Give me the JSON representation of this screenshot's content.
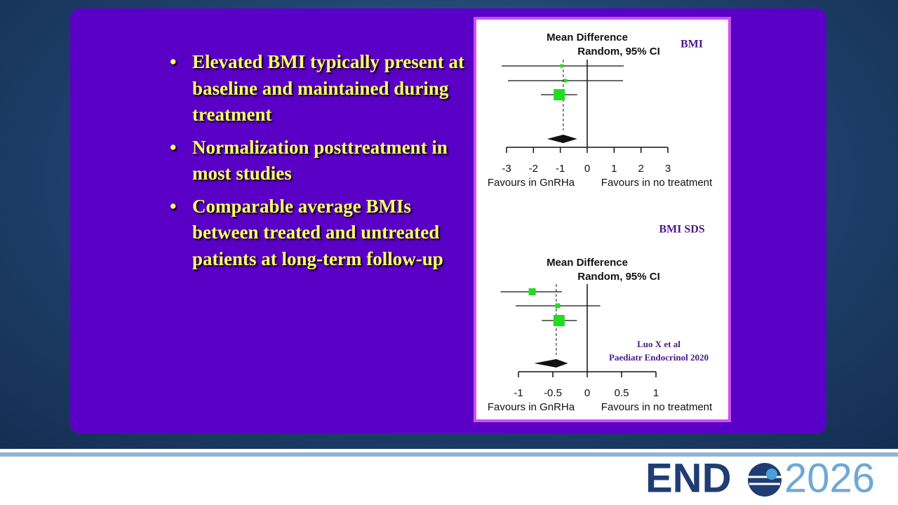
{
  "slide": {
    "bullets": [
      "Elevated BMI typically present at baseline and maintained during treatment",
      "Normalization posttreatment in most studies",
      "Comparable average BMIs between treated and untreated patients at long-term follow-up"
    ],
    "plots": [
      {
        "label": "BMI",
        "heading": [
          "Mean Difference",
          "Random, 95% CI"
        ],
        "xlim": [
          -3,
          3
        ],
        "xticks": [
          -3,
          -2,
          -1,
          0,
          1,
          2,
          3
        ],
        "studies": [
          {
            "estimate": -0.94,
            "ci": [
              -3.18,
              1.36
            ]
          },
          {
            "estimate": -0.81,
            "ci": [
              -2.95,
              1.33
            ]
          },
          {
            "estimate": -1.04,
            "ci": [
              -1.72,
              -0.37
            ]
          }
        ],
        "overall": {
          "estimate": -0.89,
          "ci": [
            -1.49,
            -0.37
          ]
        },
        "left_label": "Favours in GnRHa",
        "right_label": "Favours in no treatment"
      },
      {
        "label": "BMI SDS",
        "heading": [
          "Mean Difference",
          "Random, 95% CI"
        ],
        "xlim": [
          -1,
          1
        ],
        "xticks": [
          -1,
          -0.5,
          0,
          0.5,
          1
        ],
        "studies": [
          {
            "estimate": -0.8,
            "ci": [
              -1.26,
              -0.37
            ]
          },
          {
            "estimate": -0.43,
            "ci": [
              -1.04,
              0.19
            ]
          },
          {
            "estimate": -0.41,
            "ci": [
              -0.66,
              -0.15
            ]
          }
        ],
        "overall": {
          "estimate": -0.45,
          "ci": [
            -0.77,
            -0.28
          ]
        },
        "left_label": "Favours in GnRHa",
        "right_label": "Favours in no treatment"
      }
    ],
    "citation": [
      "Luo X et al",
      "Paediatr Endocrinol 2020"
    ]
  },
  "logo": {
    "prefix": "END",
    "year": "2026"
  }
}
